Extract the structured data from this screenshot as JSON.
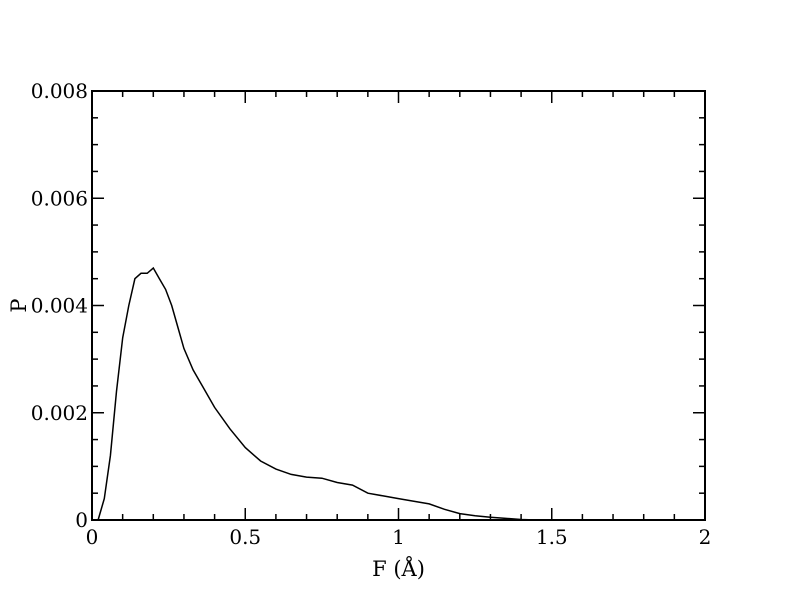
{
  "chart_data": {
    "type": "line",
    "title": "",
    "xlabel": "F (Å)",
    "ylabel": "P",
    "xlim": [
      0,
      2
    ],
    "ylim": [
      0,
      0.008
    ],
    "x_ticks": [
      0,
      0.5,
      1,
      1.5,
      2
    ],
    "x_tick_labels": [
      "0",
      "0.5",
      "1",
      "1.5",
      "2"
    ],
    "y_ticks": [
      0,
      0.002,
      0.004,
      0.006,
      0.008
    ],
    "y_tick_labels": [
      "0",
      "0.002",
      "0.004",
      "0.006",
      "0.008"
    ],
    "grid": false,
    "series": [
      {
        "color": "#000000",
        "x": [
          0.02,
          0.04,
          0.06,
          0.08,
          0.1,
          0.12,
          0.14,
          0.16,
          0.18,
          0.2,
          0.22,
          0.24,
          0.26,
          0.28,
          0.3,
          0.33,
          0.36,
          0.4,
          0.45,
          0.5,
          0.55,
          0.6,
          0.65,
          0.7,
          0.75,
          0.8,
          0.85,
          0.9,
          0.95,
          1.0,
          1.05,
          1.1,
          1.15,
          1.2,
          1.25,
          1.3,
          1.35,
          1.4,
          1.45
        ],
        "y": [
          0.0,
          0.0004,
          0.0012,
          0.0024,
          0.0034,
          0.004,
          0.0045,
          0.0046,
          0.0046,
          0.0047,
          0.0045,
          0.0043,
          0.004,
          0.0036,
          0.0032,
          0.0028,
          0.0025,
          0.0021,
          0.0017,
          0.00135,
          0.0011,
          0.00095,
          0.00085,
          0.0008,
          0.00078,
          0.0007,
          0.00065,
          0.0005,
          0.00045,
          0.0004,
          0.00035,
          0.0003,
          0.0002,
          0.00012,
          8e-05,
          5e-05,
          3e-05,
          1e-05,
          0.0
        ]
      }
    ]
  }
}
